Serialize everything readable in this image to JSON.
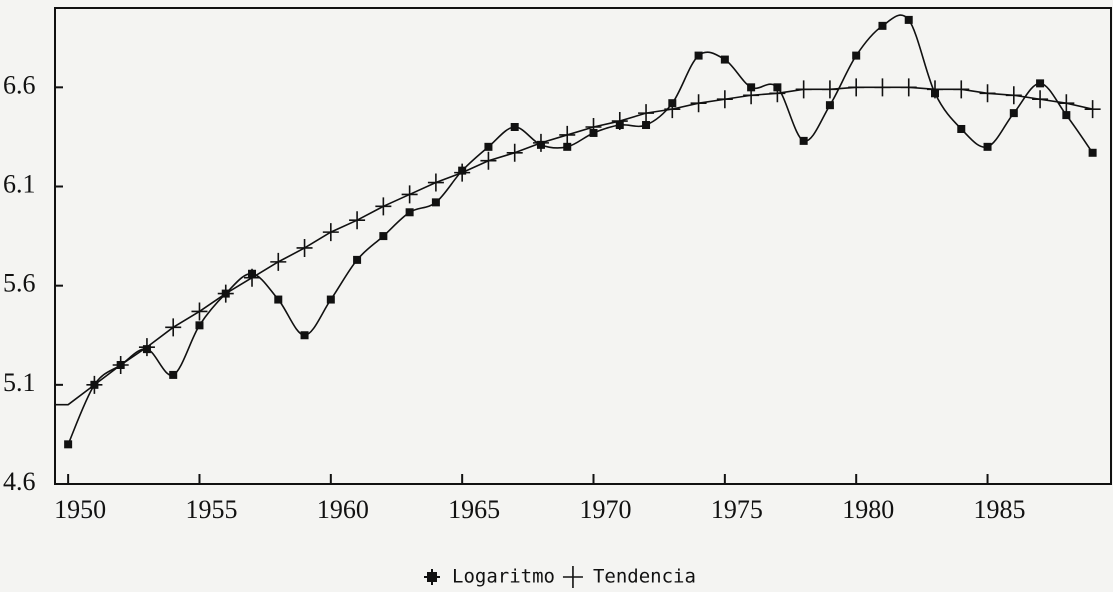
{
  "chart_data": {
    "type": "line",
    "x": [
      1950,
      1951,
      1952,
      1953,
      1954,
      1955,
      1956,
      1957,
      1958,
      1959,
      1960,
      1961,
      1962,
      1963,
      1964,
      1965,
      1966,
      1967,
      1968,
      1969,
      1970,
      1971,
      1972,
      1973,
      1974,
      1975,
      1976,
      1977,
      1978,
      1979,
      1980,
      1981,
      1982,
      1983,
      1984,
      1985,
      1986,
      1987,
      1988,
      1989
    ],
    "series": [
      {
        "name": "Logaritmo",
        "color": "#111111",
        "marker": "square",
        "values": [
          4.8,
          5.1,
          5.2,
          5.28,
          5.15,
          5.4,
          5.56,
          5.66,
          5.53,
          5.35,
          5.53,
          5.73,
          5.85,
          5.97,
          6.02,
          6.18,
          6.3,
          6.4,
          6.31,
          6.3,
          6.37,
          6.41,
          6.41,
          6.52,
          6.76,
          6.74,
          6.6,
          6.6,
          6.33,
          6.51,
          6.76,
          6.91,
          6.94,
          6.57,
          6.39,
          6.3,
          6.47,
          6.62,
          6.46,
          6.27
        ]
      },
      {
        "name": "Tendencia",
        "color": "#111111",
        "marker": "plus",
        "values": [
          5.0,
          5.1,
          5.2,
          5.29,
          5.39,
          5.47,
          5.56,
          5.64,
          5.72,
          5.79,
          5.87,
          5.93,
          6.0,
          6.06,
          6.12,
          6.17,
          6.23,
          6.27,
          6.32,
          6.36,
          6.4,
          6.43,
          6.47,
          6.49,
          6.52,
          6.54,
          6.56,
          6.57,
          6.59,
          6.59,
          6.6,
          6.6,
          6.6,
          6.59,
          6.59,
          6.57,
          6.56,
          6.54,
          6.52,
          6.49
        ]
      }
    ],
    "xlim": [
      1949.5,
      1989.7
    ],
    "xticks": [
      1950,
      1955,
      1960,
      1965,
      1970,
      1975,
      1980,
      1985
    ],
    "ylim": [
      4.6,
      7.0
    ],
    "yticks": [
      4.6,
      5.1,
      5.6,
      6.1,
      6.6
    ],
    "legend": "bottom"
  }
}
